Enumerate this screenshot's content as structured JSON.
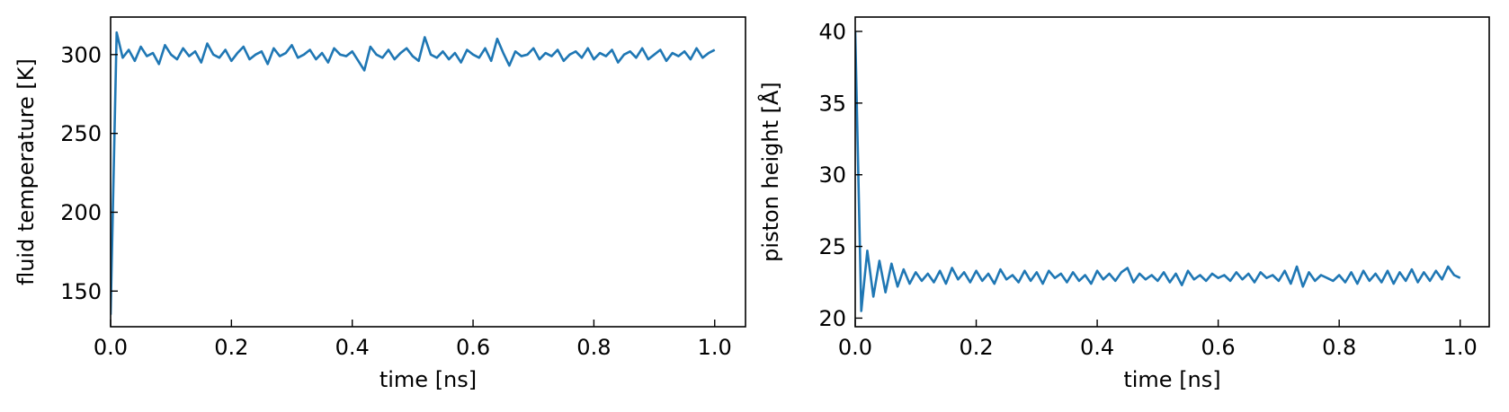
{
  "chart_data": [
    {
      "type": "line",
      "xlabel": "time [ns]",
      "ylabel": "fluid temperature [K]",
      "xlim": [
        0,
        1.051
      ],
      "ylim": [
        127.4,
        323.8
      ],
      "xticks": [
        {
          "value": 0,
          "label": "0.0"
        },
        0.2,
        0.4,
        0.6,
        0.8,
        {
          "value": 1,
          "label": "1.0"
        }
      ],
      "yticks": [
        150,
        200,
        250,
        300
      ],
      "x": [
        0,
        0.01,
        0.02,
        0.03,
        0.04,
        0.05,
        0.06,
        0.07,
        0.08,
        0.09,
        0.1,
        0.11,
        0.12,
        0.13,
        0.14,
        0.15,
        0.16,
        0.17,
        0.18,
        0.19,
        0.2,
        0.21,
        0.22,
        0.23,
        0.24,
        0.25,
        0.26,
        0.27,
        0.28,
        0.29,
        0.3,
        0.31,
        0.32,
        0.33,
        0.34,
        0.35,
        0.36,
        0.37,
        0.38,
        0.39,
        0.4,
        0.41,
        0.42,
        0.43,
        0.44,
        0.45,
        0.46,
        0.47,
        0.48,
        0.49,
        0.5,
        0.51,
        0.52,
        0.53,
        0.54,
        0.55,
        0.56,
        0.57,
        0.58,
        0.59,
        0.6,
        0.61,
        0.62,
        0.63,
        0.64,
        0.65,
        0.66,
        0.67,
        0.68,
        0.69,
        0.7,
        0.71,
        0.72,
        0.73,
        0.74,
        0.75,
        0.76,
        0.77,
        0.78,
        0.79,
        0.8,
        0.81,
        0.82,
        0.83,
        0.84,
        0.85,
        0.86,
        0.87,
        0.88,
        0.89,
        0.9,
        0.91,
        0.92,
        0.93,
        0.94,
        0.95,
        0.96,
        0.97,
        0.98,
        0.99,
        1
      ],
      "series": [
        {
          "color": "#1f77b4",
          "values": [
            135,
            314,
            298,
            303,
            296,
            305,
            299,
            301,
            294,
            306,
            300,
            297,
            304,
            299,
            302,
            295,
            307,
            300,
            298,
            303,
            296,
            301,
            305,
            297,
            300,
            302,
            294,
            304,
            299,
            301,
            306,
            298,
            300,
            303,
            297,
            301,
            295,
            304,
            300,
            299,
            302,
            296,
            290,
            305,
            300,
            298,
            303,
            297,
            301,
            304,
            299,
            296,
            311,
            300,
            298,
            302,
            297,
            301,
            295,
            303,
            300,
            298,
            304,
            296,
            310,
            301,
            293,
            302,
            299,
            300,
            304,
            297,
            301,
            299,
            303,
            296,
            300,
            302,
            298,
            304,
            297,
            301,
            299,
            303,
            295,
            300,
            302,
            298,
            304,
            297,
            300,
            303,
            296,
            301,
            299,
            302,
            297,
            304,
            298,
            301,
            303
          ]
        }
      ]
    },
    {
      "type": "line",
      "xlabel": "time [ns]",
      "ylabel": "piston height [Å]",
      "xlim": [
        0,
        1.048
      ],
      "ylim": [
        19.4,
        41.0
      ],
      "xticks": [
        {
          "value": 0,
          "label": "0.0"
        },
        0.2,
        0.4,
        0.6,
        0.8,
        {
          "value": 1,
          "label": "1.0"
        }
      ],
      "yticks": [
        20,
        25,
        30,
        35,
        40
      ],
      "x": [
        0,
        0.01,
        0.02,
        0.03,
        0.04,
        0.05,
        0.06,
        0.07,
        0.08,
        0.09,
        0.1,
        0.11,
        0.12,
        0.13,
        0.14,
        0.15,
        0.16,
        0.17,
        0.18,
        0.19,
        0.2,
        0.21,
        0.22,
        0.23,
        0.24,
        0.25,
        0.26,
        0.27,
        0.28,
        0.29,
        0.3,
        0.31,
        0.32,
        0.33,
        0.34,
        0.35,
        0.36,
        0.37,
        0.38,
        0.39,
        0.4,
        0.41,
        0.42,
        0.43,
        0.44,
        0.45,
        0.46,
        0.47,
        0.48,
        0.49,
        0.5,
        0.51,
        0.52,
        0.53,
        0.54,
        0.55,
        0.56,
        0.57,
        0.58,
        0.59,
        0.6,
        0.61,
        0.62,
        0.63,
        0.64,
        0.65,
        0.66,
        0.67,
        0.68,
        0.69,
        0.7,
        0.71,
        0.72,
        0.73,
        0.74,
        0.75,
        0.76,
        0.77,
        0.78,
        0.79,
        0.8,
        0.81,
        0.82,
        0.83,
        0.84,
        0.85,
        0.86,
        0.87,
        0.88,
        0.89,
        0.9,
        0.91,
        0.92,
        0.93,
        0.94,
        0.95,
        0.96,
        0.97,
        0.98,
        0.99,
        1
      ],
      "series": [
        {
          "color": "#1f77b4",
          "values": [
            40,
            20.5,
            24.7,
            21.5,
            24.0,
            21.8,
            23.8,
            22.2,
            23.4,
            22.4,
            23.2,
            22.6,
            23.1,
            22.5,
            23.3,
            22.4,
            23.5,
            22.7,
            23.2,
            22.5,
            23.3,
            22.6,
            23.1,
            22.4,
            23.4,
            22.7,
            23.0,
            22.5,
            23.3,
            22.6,
            23.2,
            22.4,
            23.3,
            22.8,
            23.1,
            22.5,
            23.2,
            22.6,
            23.0,
            22.4,
            23.3,
            22.7,
            23.1,
            22.6,
            23.2,
            23.5,
            22.5,
            23.1,
            22.7,
            23.0,
            22.6,
            23.2,
            22.5,
            23.1,
            22.3,
            23.3,
            22.7,
            23.0,
            22.6,
            23.1,
            22.8,
            23.0,
            22.6,
            23.2,
            22.7,
            23.1,
            22.5,
            23.2,
            22.8,
            23.0,
            22.6,
            23.3,
            22.4,
            23.6,
            22.2,
            23.2,
            22.6,
            23.0,
            22.8,
            22.6,
            23.0,
            22.5,
            23.2,
            22.4,
            23.3,
            22.6,
            23.1,
            22.5,
            23.3,
            22.4,
            23.2,
            22.6,
            23.4,
            22.5,
            23.2,
            22.6,
            23.3,
            22.7,
            23.6,
            23.0,
            22.8
          ]
        }
      ]
    }
  ]
}
